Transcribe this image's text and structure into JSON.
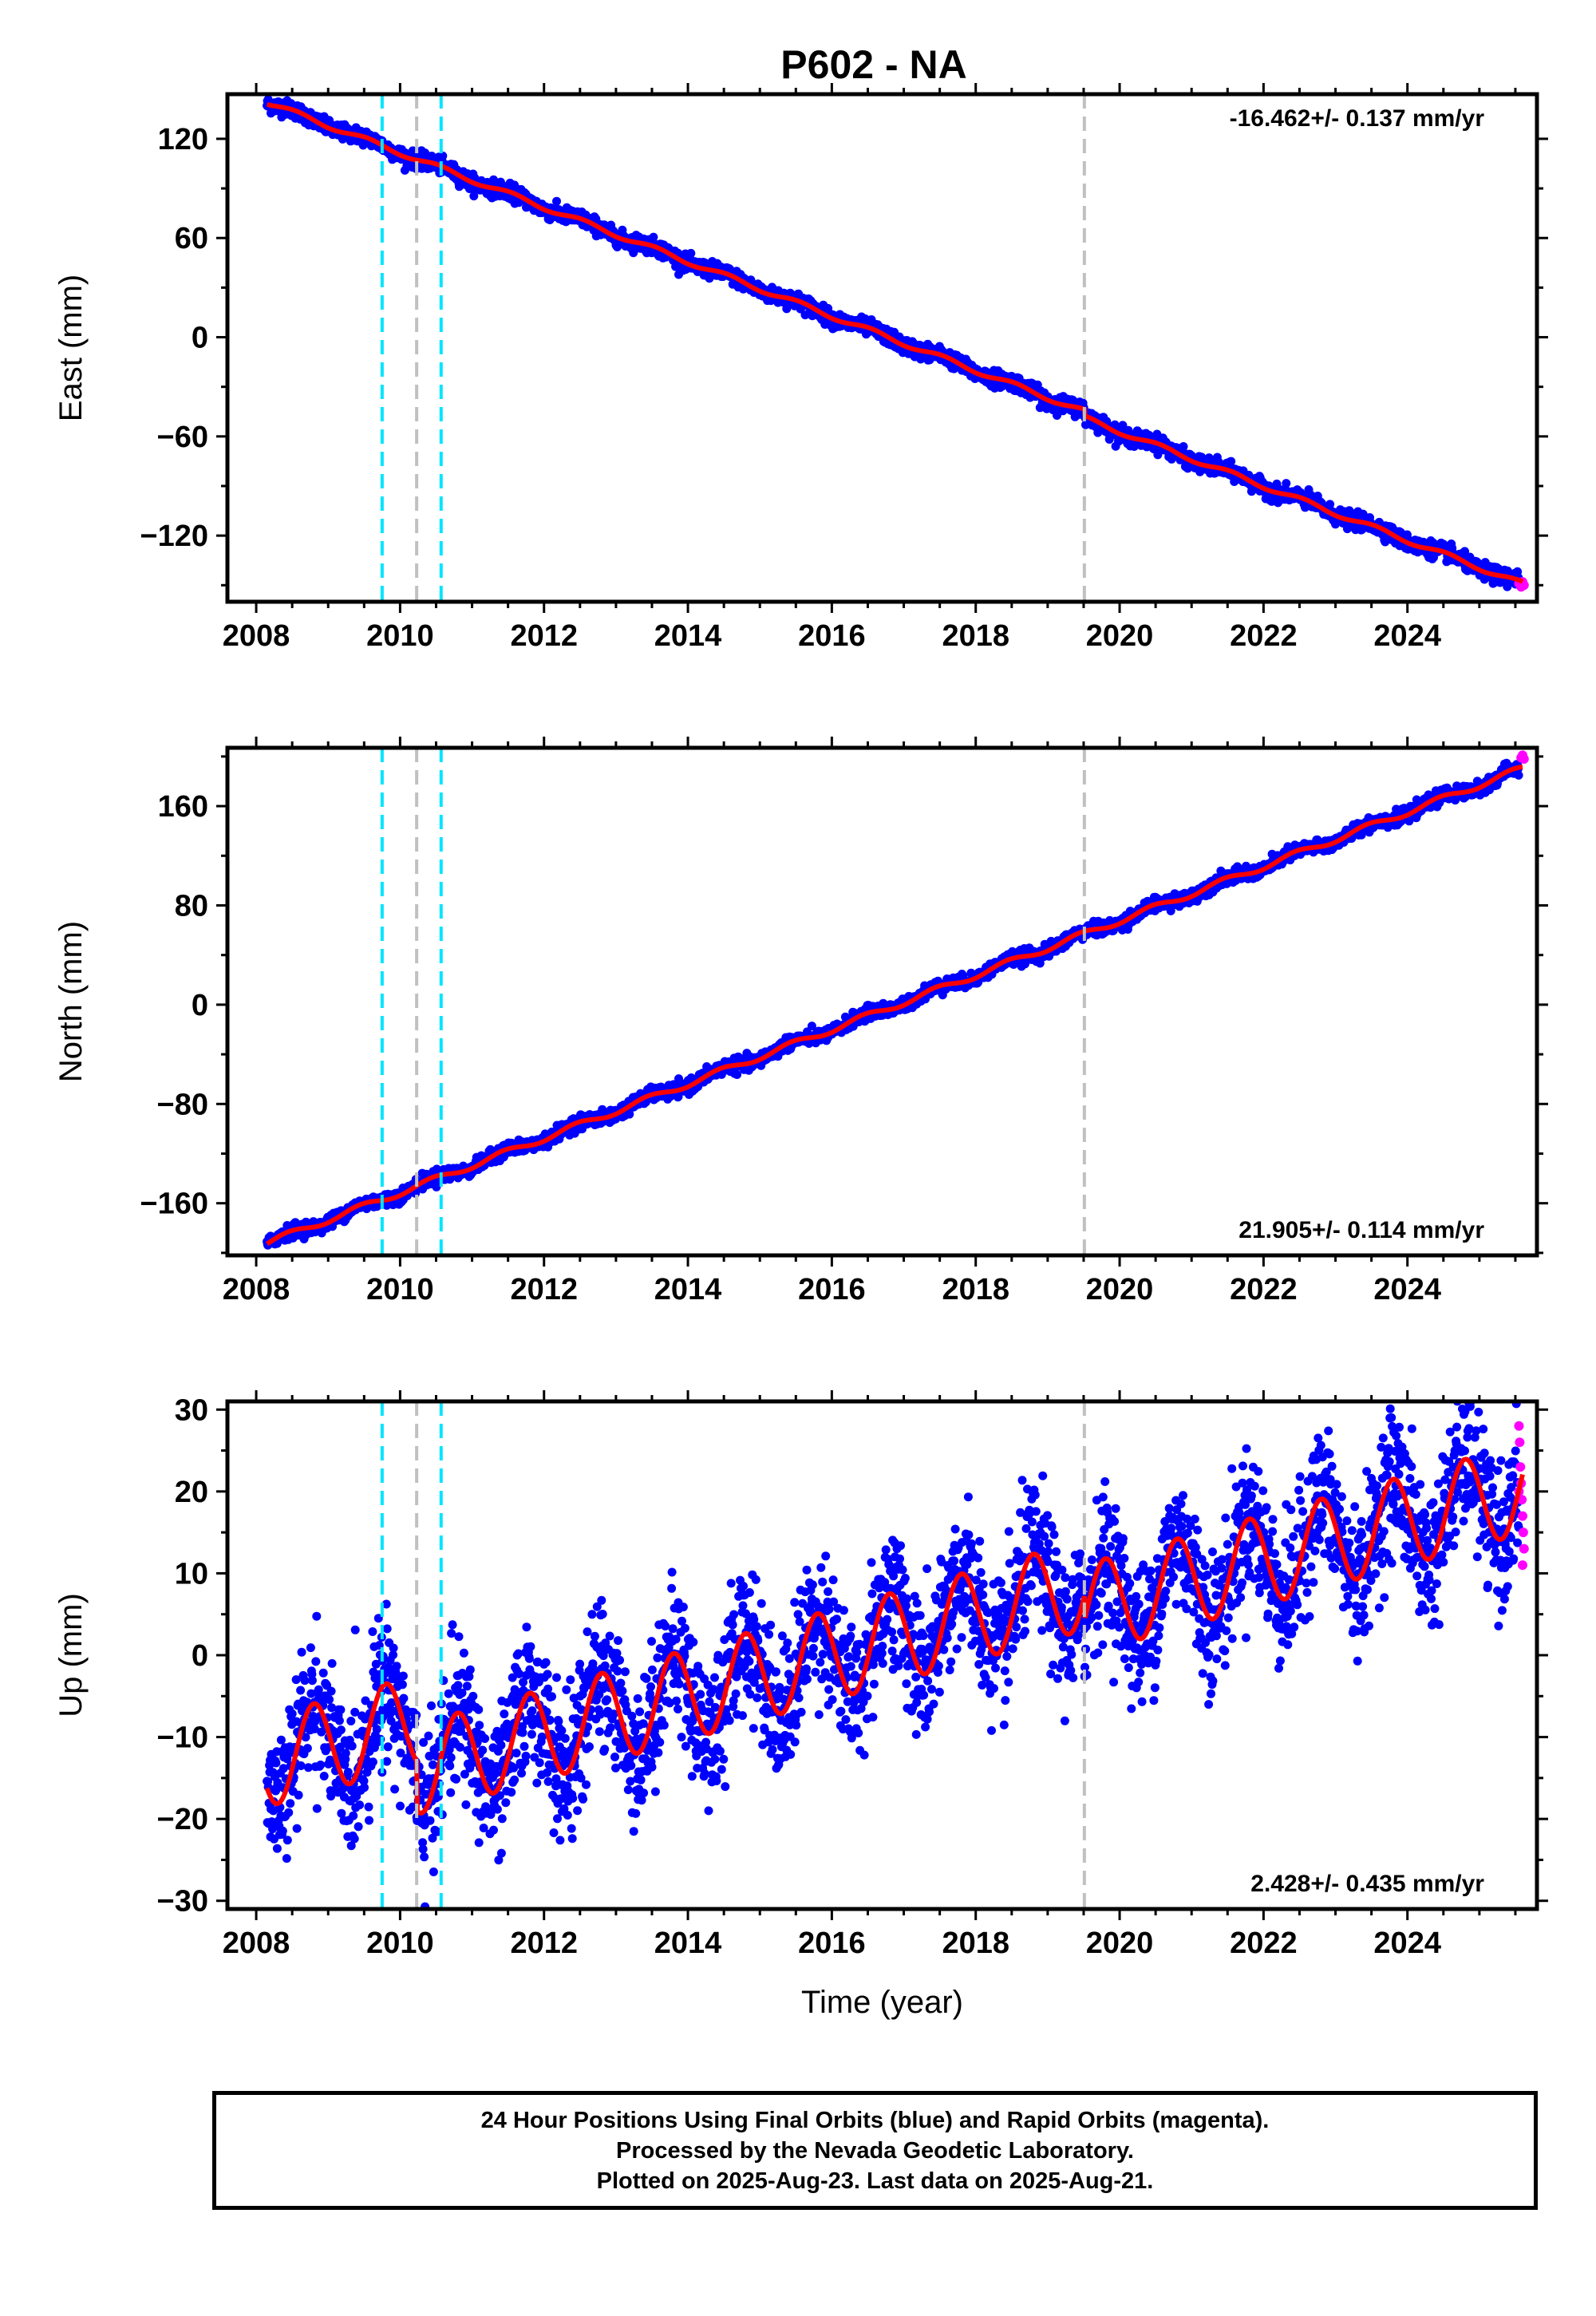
{
  "title": "P602 - NA",
  "colors": {
    "final_points": "#0000ff",
    "rapid_points": "#ff00ff",
    "model_line": "#ff0000",
    "cyan_marker": "#00e5ff",
    "gray_marker": "#c0c0c0"
  },
  "markers": {
    "cyan": [
      2009.75,
      2010.57
    ],
    "gray": [
      2010.23,
      2019.51
    ]
  },
  "chart_data": [
    {
      "type": "scatter",
      "name": "east",
      "ylabel": "East (mm)",
      "xlim": [
        2007.6,
        2025.8
      ],
      "ylim": [
        -160,
        147
      ],
      "xticks": [
        2008,
        2010,
        2012,
        2014,
        2016,
        2018,
        2020,
        2022,
        2024
      ],
      "yticks": [
        -120,
        -60,
        0,
        60,
        120
      ],
      "rate_label": "-16.462+/- 0.137 mm/yr",
      "rate_position": "top-right",
      "model": {
        "start_year": 2008.15,
        "end_year": 2025.6,
        "start_value": 142,
        "rate": -16.462,
        "annual_amplitude": 1.5,
        "annual_phase": 0.3,
        "offsets": [
          {
            "year": 2019.51,
            "value": -4
          }
        ]
      },
      "rapid_points": [
        {
          "x": 2025.55,
          "y": -149
        },
        {
          "x": 2025.58,
          "y": -151
        },
        {
          "x": 2025.6,
          "y": -148
        },
        {
          "x": 2025.62,
          "y": -150
        }
      ],
      "noise_mm": 2.3
    },
    {
      "type": "scatter",
      "name": "north",
      "ylabel": "North (mm)",
      "xlim": [
        2007.6,
        2025.8
      ],
      "ylim": [
        -202,
        207
      ],
      "xticks": [
        2008,
        2010,
        2012,
        2014,
        2016,
        2018,
        2020,
        2022,
        2024
      ],
      "yticks": [
        -160,
        -80,
        0,
        80,
        160
      ],
      "rate_label": "21.905+/- 0.114 mm/yr",
      "rate_position": "bottom-right",
      "model": {
        "start_year": 2008.15,
        "end_year": 2025.6,
        "start_value": -192,
        "rate": 21.905,
        "annual_amplitude": 2.5,
        "annual_phase": 0.2,
        "offsets": []
      },
      "rapid_points": [
        {
          "x": 2025.58,
          "y": 199
        },
        {
          "x": 2025.6,
          "y": 201
        },
        {
          "x": 2025.62,
          "y": 198
        }
      ],
      "noise_mm": 2.6
    },
    {
      "type": "scatter",
      "name": "up",
      "ylabel": "Up (mm)",
      "xlabel": "Time (year)",
      "xlim": [
        2007.6,
        2025.8
      ],
      "ylim": [
        -31,
        31
      ],
      "xticks": [
        2008,
        2010,
        2012,
        2014,
        2016,
        2018,
        2020,
        2022,
        2024
      ],
      "yticks": [
        -30,
        -20,
        -10,
        0,
        10,
        20,
        30
      ],
      "rate_label": "2.428+/- 0.435 mm/yr",
      "rate_position": "bottom-right",
      "model": {
        "start_year": 2008.15,
        "end_year": 2025.6,
        "start_value": -13,
        "rate": 2.428,
        "annual_amplitude": 5.5,
        "annual_phase": 0.55,
        "offsets": [
          {
            "year": 2010.23,
            "value": -6
          },
          {
            "year": 2019.51,
            "value": -3
          }
        ]
      },
      "rapid_points": [
        {
          "x": 2025.55,
          "y": 28
        },
        {
          "x": 2025.56,
          "y": 26
        },
        {
          "x": 2025.57,
          "y": 23
        },
        {
          "x": 2025.58,
          "y": 21
        },
        {
          "x": 2025.59,
          "y": 19
        },
        {
          "x": 2025.6,
          "y": 17
        },
        {
          "x": 2025.61,
          "y": 15
        },
        {
          "x": 2025.62,
          "y": 13
        },
        {
          "x": 2025.55,
          "y": 20
        },
        {
          "x": 2025.6,
          "y": 11
        }
      ],
      "noise_mm": 4.2
    }
  ],
  "footer": {
    "line1": "24 Hour Positions Using Final Orbits (blue) and Rapid Orbits (magenta).",
    "line2": "Processed by the Nevada Geodetic Laboratory.",
    "line3": "Plotted on 2025-Aug-23. Last data on 2025-Aug-21."
  }
}
